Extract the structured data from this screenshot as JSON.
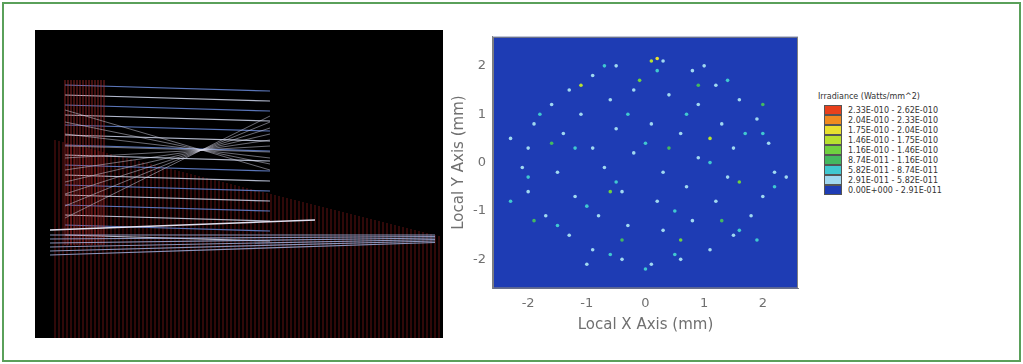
{
  "chart_data": {
    "type": "scatter",
    "x_label": "Local X Axis (mm)",
    "y_label": "Local Y Axis (mm)",
    "xlim": [
      -2.6,
      2.6
    ],
    "ylim": [
      -2.6,
      2.6
    ],
    "xticks": [
      -2,
      -1,
      0,
      1,
      2
    ],
    "yticks": [
      -2,
      -1,
      0,
      1,
      2
    ],
    "legend": "right",
    "legend_title": "Irradiance (Watts/mm^2)",
    "series": [
      {
        "name": "2.33E-010 - 2.62E-010",
        "color": "#e8401c",
        "x": [],
        "y": []
      },
      {
        "name": "2.04E-010 - 2.33E-010",
        "color": "#f08a20",
        "x": [],
        "y": []
      },
      {
        "name": "1.75E-010 - 2.04E-010",
        "color": "#e8e030",
        "x": [
          0.2
        ],
        "y": [
          2.15
        ]
      },
      {
        "name": "1.46E-010 - 1.75E-010",
        "color": "#b8e030",
        "x": [
          0.1,
          -1.1,
          1.1
        ],
        "y": [
          2.1,
          1.6,
          0.5
        ]
      },
      {
        "name": "1.16E-010 - 1.46E-010",
        "color": "#70d040",
        "x": [
          -0.6,
          1.6,
          -0.1,
          0.6
        ],
        "y": [
          -0.6,
          -0.4,
          1.7,
          -1.6
        ]
      },
      {
        "name": "8.74E-011 - 1.16E-010",
        "color": "#44b860",
        "x": [
          -1.6,
          0.9,
          1.3,
          -0.4,
          0.4,
          -1.9,
          2.0
        ],
        "y": [
          0.4,
          1.6,
          -1.2,
          -1.6,
          0.3,
          -1.2,
          1.2
        ]
      },
      {
        "name": "5.82E-011 - 8.74E-011",
        "color": "#40c8d0",
        "x": [
          -1.8,
          -0.7,
          0.2,
          1.4,
          2.0,
          2.2,
          1.6,
          0.5,
          -0.6,
          -1.5,
          -2.0,
          -1.2,
          -0.3,
          0.7,
          1.1,
          0.5,
          -0.5,
          0.0,
          -1.0,
          1.7,
          0.0,
          -2.3,
          1.9
        ],
        "y": [
          1.0,
          2.0,
          1.9,
          1.7,
          0.6,
          -0.5,
          -1.4,
          -1.9,
          -1.9,
          -1.3,
          -0.3,
          0.3,
          1.0,
          1.0,
          0.0,
          -1.0,
          -0.4,
          0.4,
          -0.9,
          0.6,
          -2.2,
          -0.8,
          -1.6
        ]
      },
      {
        "name": "2.91E-011 - 5.82E-011",
        "color": "#a0d8f0",
        "x": [
          -1.9,
          -1.6,
          -1.3,
          -0.9,
          -0.5,
          0.3,
          0.8,
          1.2,
          1.6,
          1.9,
          2.1,
          2.2,
          2.0,
          1.8,
          1.5,
          1.1,
          0.6,
          0.1,
          -0.4,
          -0.9,
          -1.3,
          -1.7,
          -2.0,
          -2.1,
          -2.0,
          -1.4,
          -1.1,
          -0.6,
          -0.2,
          0.4,
          0.9,
          1.3,
          1.5,
          1.4,
          1.2,
          0.8,
          0.3,
          -0.3,
          -0.8,
          -1.2,
          -1.5,
          -0.9,
          -0.5,
          0.1,
          0.6,
          0.9,
          0.7,
          0.2,
          -0.4,
          -0.7,
          -0.2,
          0.3,
          2.4,
          -2.3,
          1.0,
          -1.0
        ],
        "y": [
          0.8,
          1.2,
          1.5,
          1.8,
          2.0,
          2.1,
          1.9,
          1.6,
          1.3,
          0.9,
          0.4,
          -0.2,
          -0.7,
          -1.1,
          -1.5,
          -1.8,
          -2.0,
          -2.1,
          -2.0,
          -1.8,
          -1.5,
          -1.1,
          -0.6,
          -0.1,
          0.3,
          0.6,
          1.0,
          1.3,
          1.5,
          1.4,
          1.2,
          0.8,
          0.3,
          -0.3,
          -0.8,
          -1.2,
          -1.4,
          -1.3,
          -1.1,
          -0.7,
          -0.2,
          0.3,
          0.7,
          0.8,
          0.6,
          0.1,
          -0.5,
          -0.8,
          -0.6,
          -0.1,
          0.2,
          -0.2,
          -0.3,
          0.5,
          2.0,
          -2.1
        ]
      },
      {
        "name": "0.00E+000 - 2.91E-011",
        "color": "#1e3cb4",
        "x": [],
        "y": []
      }
    ]
  }
}
